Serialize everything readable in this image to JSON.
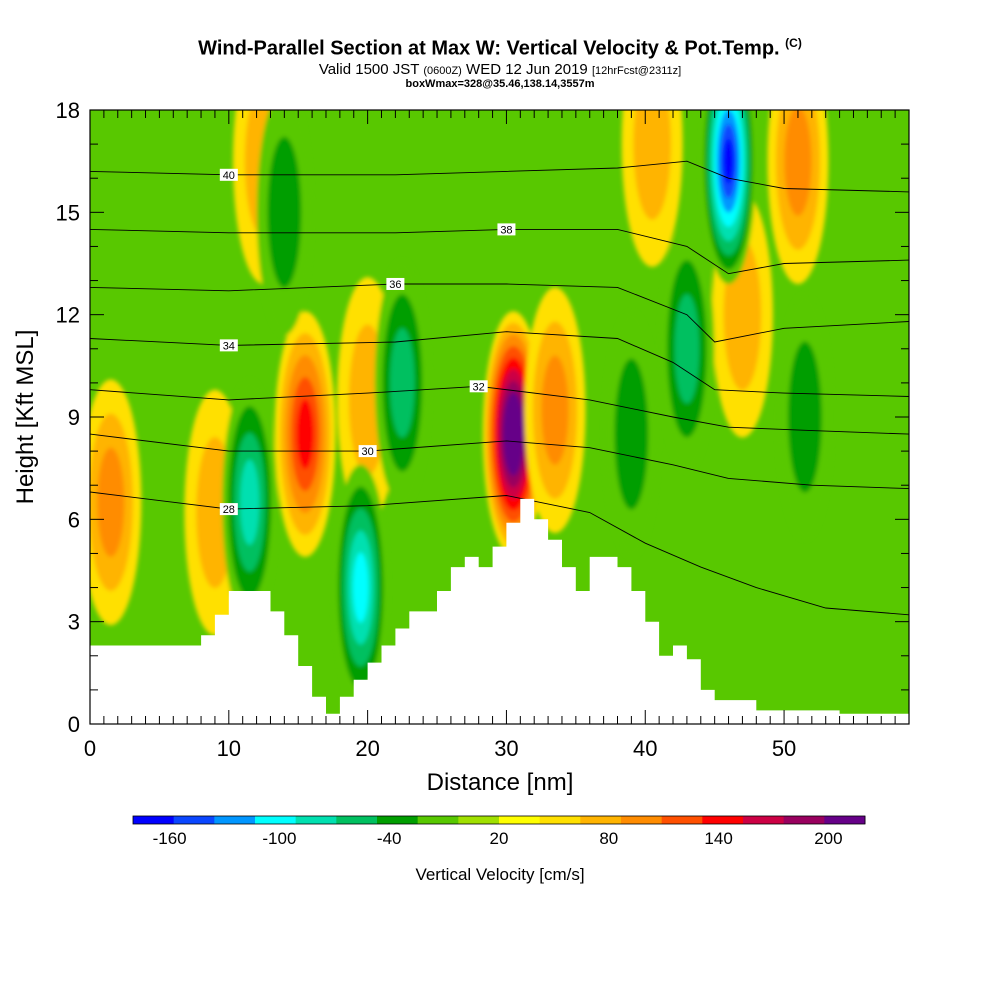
{
  "header": {
    "title": "Wind-Parallel Section at Max W: Vertical Velocity & Pot.Temp.",
    "title_mark": "(C)",
    "sub_valid": "Valid 1500 JST",
    "sub_zulu": "(0600Z)",
    "sub_date": "WED 12 Jun 2019",
    "sub_fcst": "[12hrFcst@2311z]",
    "box_info": "boxWmax=328@35.46,138.14,3557m"
  },
  "chart_data": {
    "type": "heatmap",
    "xlabel": "Distance [nm]",
    "ylabel": "Height [Kft MSL]",
    "xlim": [
      0,
      59
    ],
    "ylim": [
      0,
      18
    ],
    "x_ticks": [
      0,
      10,
      20,
      30,
      40,
      50
    ],
    "y_ticks": [
      0,
      3,
      6,
      9,
      12,
      15,
      18
    ],
    "grid": false,
    "colorbar": {
      "label": "Vertical Velocity [cm/s]",
      "levels": [
        -180,
        -160,
        -140,
        -120,
        -100,
        -80,
        -60,
        -40,
        -20,
        0,
        20,
        40,
        60,
        80,
        100,
        120,
        140,
        160,
        180,
        200,
        220
      ],
      "tick_labels": [
        -160,
        -100,
        -40,
        20,
        80,
        140,
        200
      ],
      "colors": [
        "#0000ff",
        "#0a46ff",
        "#0096ff",
        "#00ffff",
        "#00e0b0",
        "#00c060",
        "#009e00",
        "#58c800",
        "#a0e000",
        "#ffff00",
        "#ffe000",
        "#ffb400",
        "#ff8c00",
        "#ff5000",
        "#ff0000",
        "#cc0044",
        "#99005f",
        "#660088"
      ]
    },
    "updraft_cores": [
      {
        "x": 30.5,
        "y": 8.5,
        "w_max": 200
      },
      {
        "x": 15.5,
        "y": 8.5,
        "w_max": 100
      },
      {
        "x": 1.5,
        "y": 6.5,
        "w_max": 60
      },
      {
        "x": 33.5,
        "y": 9.2,
        "w_max": 60
      },
      {
        "x": 20.0,
        "y": 9.5,
        "w_max": 40
      },
      {
        "x": 9.0,
        "y": 6.2,
        "w_max": 40
      },
      {
        "x": 47.0,
        "y": 12.0,
        "w_max": 40
      },
      {
        "x": 12.5,
        "y": 16.5,
        "w_max": 40
      },
      {
        "x": 51.0,
        "y": 16.5,
        "w_max": 60
      },
      {
        "x": 40.5,
        "y": 17.0,
        "w_max": 40
      }
    ],
    "downdraft_cores": [
      {
        "x": 46.0,
        "y": 16.5,
        "w_min": -160
      },
      {
        "x": 19.5,
        "y": 4.0,
        "w_min": -100
      },
      {
        "x": 11.5,
        "y": 6.5,
        "w_min": -80
      },
      {
        "x": 22.5,
        "y": 10.0,
        "w_min": -60
      },
      {
        "x": 43.0,
        "y": 11.0,
        "w_min": -60
      },
      {
        "x": 14.0,
        "y": 15.0,
        "w_min": -40
      },
      {
        "x": 39.0,
        "y": 8.5,
        "w_min": -40
      },
      {
        "x": 51.5,
        "y": 9.0,
        "w_min": -40
      }
    ],
    "theta_isentropes": [
      {
        "name": "28",
        "points": [
          [
            0,
            6.8
          ],
          [
            10,
            6.3
          ],
          [
            20,
            6.4
          ],
          [
            30,
            6.7
          ],
          [
            36,
            6.2
          ],
          [
            40,
            5.3
          ],
          [
            44,
            4.6
          ],
          [
            48,
            4.0
          ],
          [
            53,
            3.4
          ],
          [
            59,
            3.2
          ]
        ]
      },
      {
        "name": "30",
        "points": [
          [
            0,
            8.5
          ],
          [
            10,
            8.0
          ],
          [
            20,
            8.0
          ],
          [
            30,
            8.3
          ],
          [
            36,
            8.1
          ],
          [
            42,
            7.6
          ],
          [
            46,
            7.2
          ],
          [
            52,
            7.0
          ],
          [
            59,
            6.9
          ]
        ]
      },
      {
        "name": "32",
        "points": [
          [
            0,
            9.8
          ],
          [
            10,
            9.5
          ],
          [
            20,
            9.7
          ],
          [
            28,
            9.9
          ],
          [
            36,
            9.5
          ],
          [
            42,
            9.0
          ],
          [
            46,
            8.7
          ],
          [
            52,
            8.6
          ],
          [
            59,
            8.5
          ]
        ]
      },
      {
        "name": "34",
        "points": [
          [
            0,
            11.3
          ],
          [
            10,
            11.1
          ],
          [
            22,
            11.2
          ],
          [
            30,
            11.5
          ],
          [
            38,
            11.3
          ],
          [
            42,
            10.6
          ],
          [
            45,
            9.8
          ],
          [
            50,
            9.7
          ],
          [
            59,
            9.6
          ]
        ]
      },
      {
        "name": "36",
        "points": [
          [
            0,
            12.8
          ],
          [
            10,
            12.7
          ],
          [
            22,
            12.9
          ],
          [
            30,
            12.9
          ],
          [
            38,
            12.8
          ],
          [
            43,
            12.0
          ],
          [
            45,
            11.2
          ],
          [
            50,
            11.6
          ],
          [
            59,
            11.8
          ]
        ]
      },
      {
        "name": "38",
        "points": [
          [
            0,
            14.5
          ],
          [
            10,
            14.4
          ],
          [
            22,
            14.4
          ],
          [
            30,
            14.5
          ],
          [
            38,
            14.5
          ],
          [
            43,
            14.0
          ],
          [
            46,
            13.2
          ],
          [
            50,
            13.5
          ],
          [
            59,
            13.6
          ]
        ]
      },
      {
        "name": "40",
        "points": [
          [
            0,
            16.2
          ],
          [
            10,
            16.1
          ],
          [
            22,
            16.1
          ],
          [
            30,
            16.2
          ],
          [
            38,
            16.3
          ],
          [
            43,
            16.5
          ],
          [
            46,
            16.0
          ],
          [
            50,
            15.7
          ],
          [
            59,
            15.6
          ]
        ]
      }
    ],
    "terrain_top_kft": [
      [
        0,
        2.3
      ],
      [
        4,
        2.3
      ],
      [
        8,
        2.3
      ],
      [
        8,
        2.6
      ],
      [
        9,
        2.6
      ],
      [
        9,
        3.2
      ],
      [
        10,
        3.2
      ],
      [
        10,
        3.9
      ],
      [
        13,
        3.9
      ],
      [
        13,
        3.3
      ],
      [
        14,
        3.3
      ],
      [
        14,
        2.6
      ],
      [
        15,
        2.6
      ],
      [
        15,
        1.7
      ],
      [
        16,
        1.7
      ],
      [
        16,
        0.8
      ],
      [
        17,
        0.8
      ],
      [
        17,
        0.3
      ],
      [
        18,
        0.3
      ],
      [
        18,
        0.8
      ],
      [
        19,
        0.8
      ],
      [
        19,
        1.3
      ],
      [
        20,
        1.3
      ],
      [
        20,
        1.8
      ],
      [
        21,
        1.8
      ],
      [
        21,
        2.3
      ],
      [
        22,
        2.3
      ],
      [
        22,
        2.8
      ],
      [
        23,
        2.8
      ],
      [
        23,
        3.3
      ],
      [
        25,
        3.3
      ],
      [
        25,
        3.9
      ],
      [
        26,
        3.9
      ],
      [
        26,
        4.6
      ],
      [
        27,
        4.6
      ],
      [
        27,
        4.9
      ],
      [
        28,
        4.9
      ],
      [
        28,
        4.6
      ],
      [
        29,
        4.6
      ],
      [
        29,
        5.2
      ],
      [
        30,
        5.2
      ],
      [
        30,
        5.9
      ],
      [
        31,
        5.9
      ],
      [
        31,
        6.6
      ],
      [
        32,
        6.6
      ],
      [
        32,
        6.0
      ],
      [
        33,
        6.0
      ],
      [
        33,
        5.4
      ],
      [
        34,
        5.4
      ],
      [
        34,
        4.6
      ],
      [
        35,
        4.6
      ],
      [
        35,
        3.9
      ],
      [
        36,
        3.9
      ],
      [
        36,
        4.9
      ],
      [
        38,
        4.9
      ],
      [
        38,
        4.6
      ],
      [
        39,
        4.6
      ],
      [
        39,
        3.9
      ],
      [
        40,
        3.9
      ],
      [
        40,
        3.0
      ],
      [
        41,
        3.0
      ],
      [
        41,
        2.0
      ],
      [
        42,
        2.0
      ],
      [
        42,
        2.3
      ],
      [
        43,
        2.3
      ],
      [
        43,
        1.9
      ],
      [
        44,
        1.9
      ],
      [
        44,
        1.0
      ],
      [
        45,
        1.0
      ],
      [
        45,
        0.7
      ],
      [
        48,
        0.7
      ],
      [
        48,
        0.4
      ],
      [
        54,
        0.4
      ],
      [
        54,
        0.3
      ],
      [
        59,
        0.3
      ]
    ]
  }
}
